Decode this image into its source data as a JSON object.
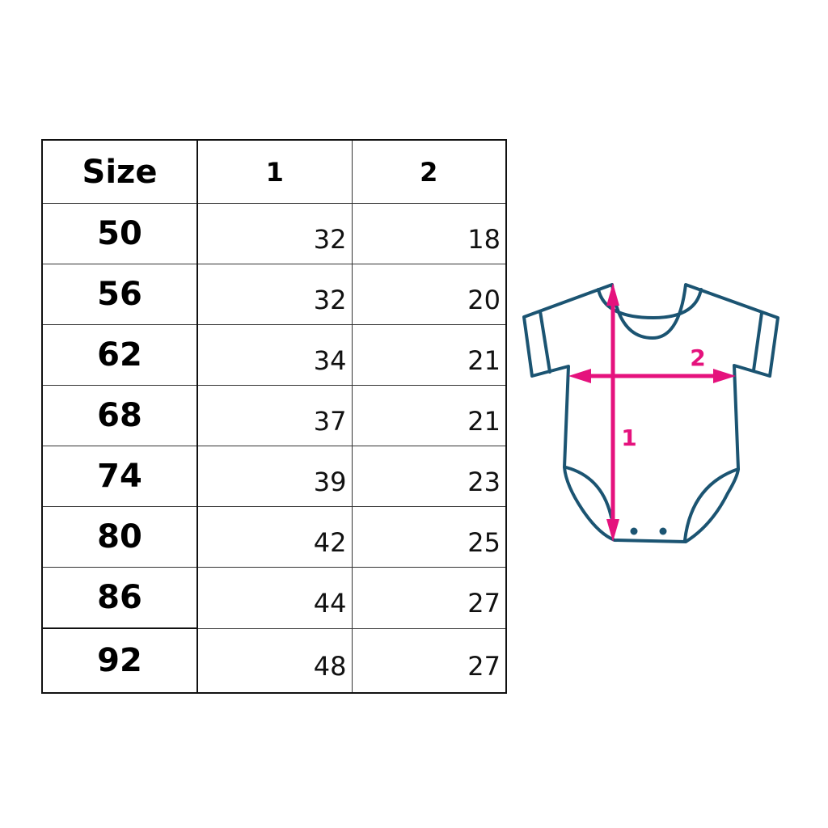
{
  "table": {
    "headers": [
      "Size",
      "1",
      "2"
    ],
    "rows": [
      [
        "50",
        "32",
        "18"
      ],
      [
        "56",
        "32",
        "20"
      ],
      [
        "62",
        "34",
        "21"
      ],
      [
        "68",
        "37",
        "21"
      ],
      [
        "74",
        "39",
        "23"
      ],
      [
        "80",
        "42",
        "25"
      ],
      [
        "86",
        "44",
        "27"
      ],
      [
        "92",
        "48",
        "27"
      ]
    ]
  },
  "illustration": {
    "icon": "baby-bodysuit-icon",
    "label_length": "1",
    "label_width": "2",
    "outline_color": "#1b5472",
    "measure_color": "#e5127d"
  }
}
